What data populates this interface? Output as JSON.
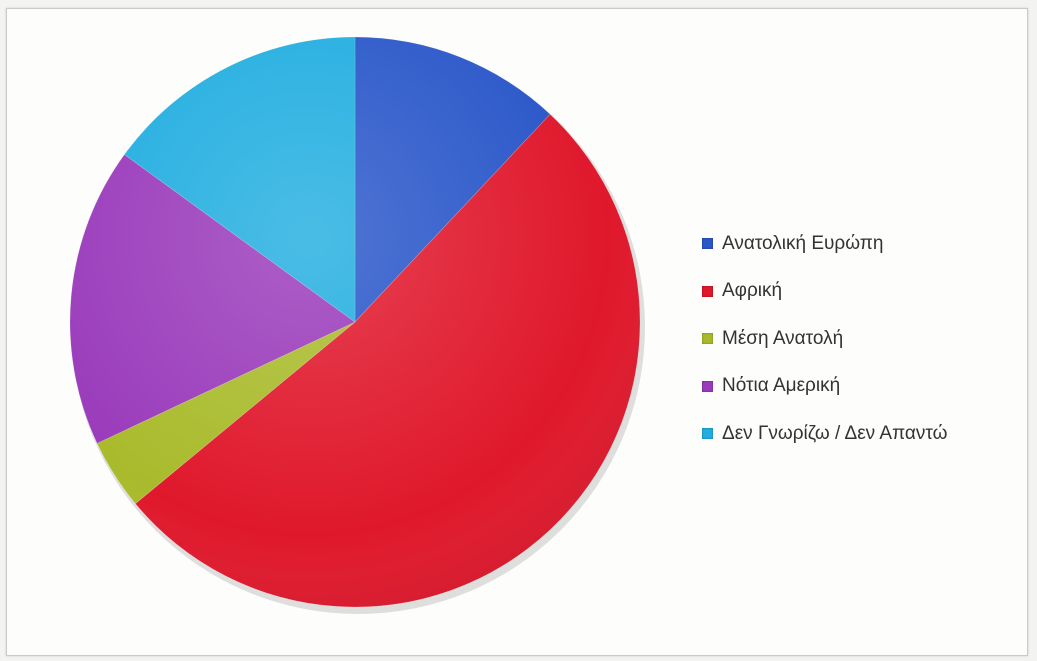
{
  "chart_data": {
    "type": "pie",
    "categories": [
      "Ανατολική Ευρώπη",
      "Αφρική",
      "Μέση Ανατολή",
      "Νότια Αμερική",
      "Δεν Γνωρίζω / Δεν Απαντώ"
    ],
    "values": [
      12,
      52,
      4,
      17,
      15
    ],
    "colors": [
      "#2a57c9",
      "#e0182c",
      "#a9bb2c",
      "#9a3bbb",
      "#22aee0"
    ],
    "legend_position": "right"
  },
  "legend": {
    "items": [
      {
        "label": "Ανατολική Ευρώπη",
        "color": "#2a57c9"
      },
      {
        "label": "Αφρική",
        "color": "#e0182c"
      },
      {
        "label": "Μέση Ανατολή",
        "color": "#a9bb2c"
      },
      {
        "label": "Νότια Αμερική",
        "color": "#9a3bbb"
      },
      {
        "label": "Δεν Γνωρίζω / Δεν Απαντώ",
        "color": "#22aee0"
      }
    ]
  }
}
